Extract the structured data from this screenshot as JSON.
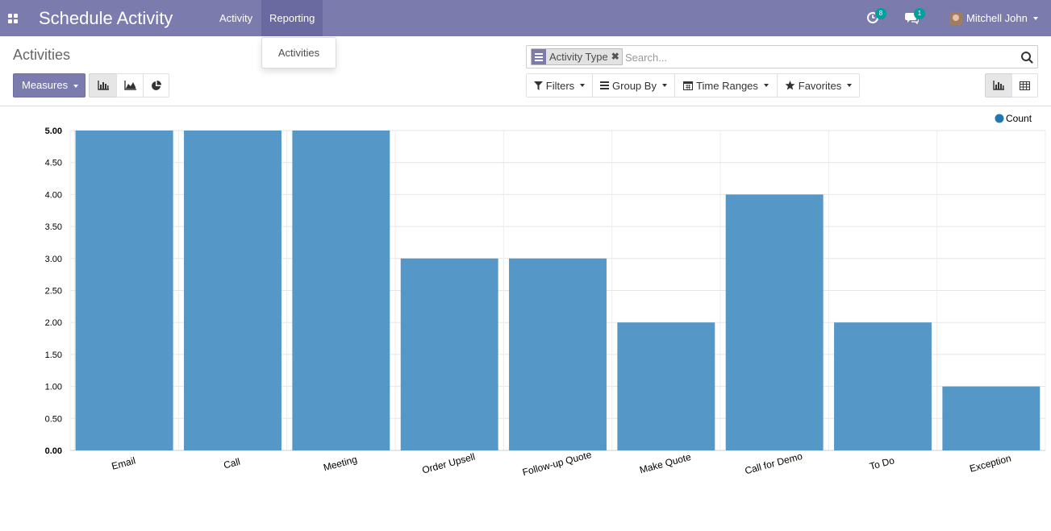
{
  "navbar": {
    "apps_icon": "apps-grid-icon",
    "brand": "Schedule Activity",
    "menus": [
      {
        "label": "Activity",
        "active": false
      },
      {
        "label": "Reporting",
        "active": true
      }
    ],
    "activity_badge": "8",
    "messages_badge": "1",
    "user_name": "Mitchell John",
    "colors": {
      "bar": "#7c7bad",
      "badge": "#00a09d"
    }
  },
  "reporting_dropdown": {
    "items": [
      "Activities"
    ]
  },
  "control_panel": {
    "title": "Activities",
    "search": {
      "facet_label": "Activity Type",
      "placeholder": "Search..."
    },
    "measures_label": "Measures",
    "filters_label": "Filters",
    "group_by_label": "Group By",
    "time_ranges_label": "Time Ranges",
    "favorites_label": "Favorites"
  },
  "chart_data": {
    "type": "bar",
    "categories": [
      "Email",
      "Call",
      "Meeting",
      "Order Upsell",
      "Follow-up Quote",
      "Make Quote",
      "Call for Demo",
      "To Do",
      "Exception"
    ],
    "series": [
      {
        "name": "Count",
        "values": [
          5,
          5,
          5,
          3,
          3,
          2,
          4,
          2,
          1
        ],
        "color": "#5597c7"
      }
    ],
    "y_ticks": [
      "0.00",
      "0.50",
      "1.00",
      "1.50",
      "2.00",
      "2.50",
      "3.00",
      "3.50",
      "4.00",
      "4.50",
      "5.00"
    ],
    "ylim": [
      0,
      5
    ],
    "grid": true,
    "legend_position": "top-right",
    "legend_dot_color": "#1f77b4"
  }
}
